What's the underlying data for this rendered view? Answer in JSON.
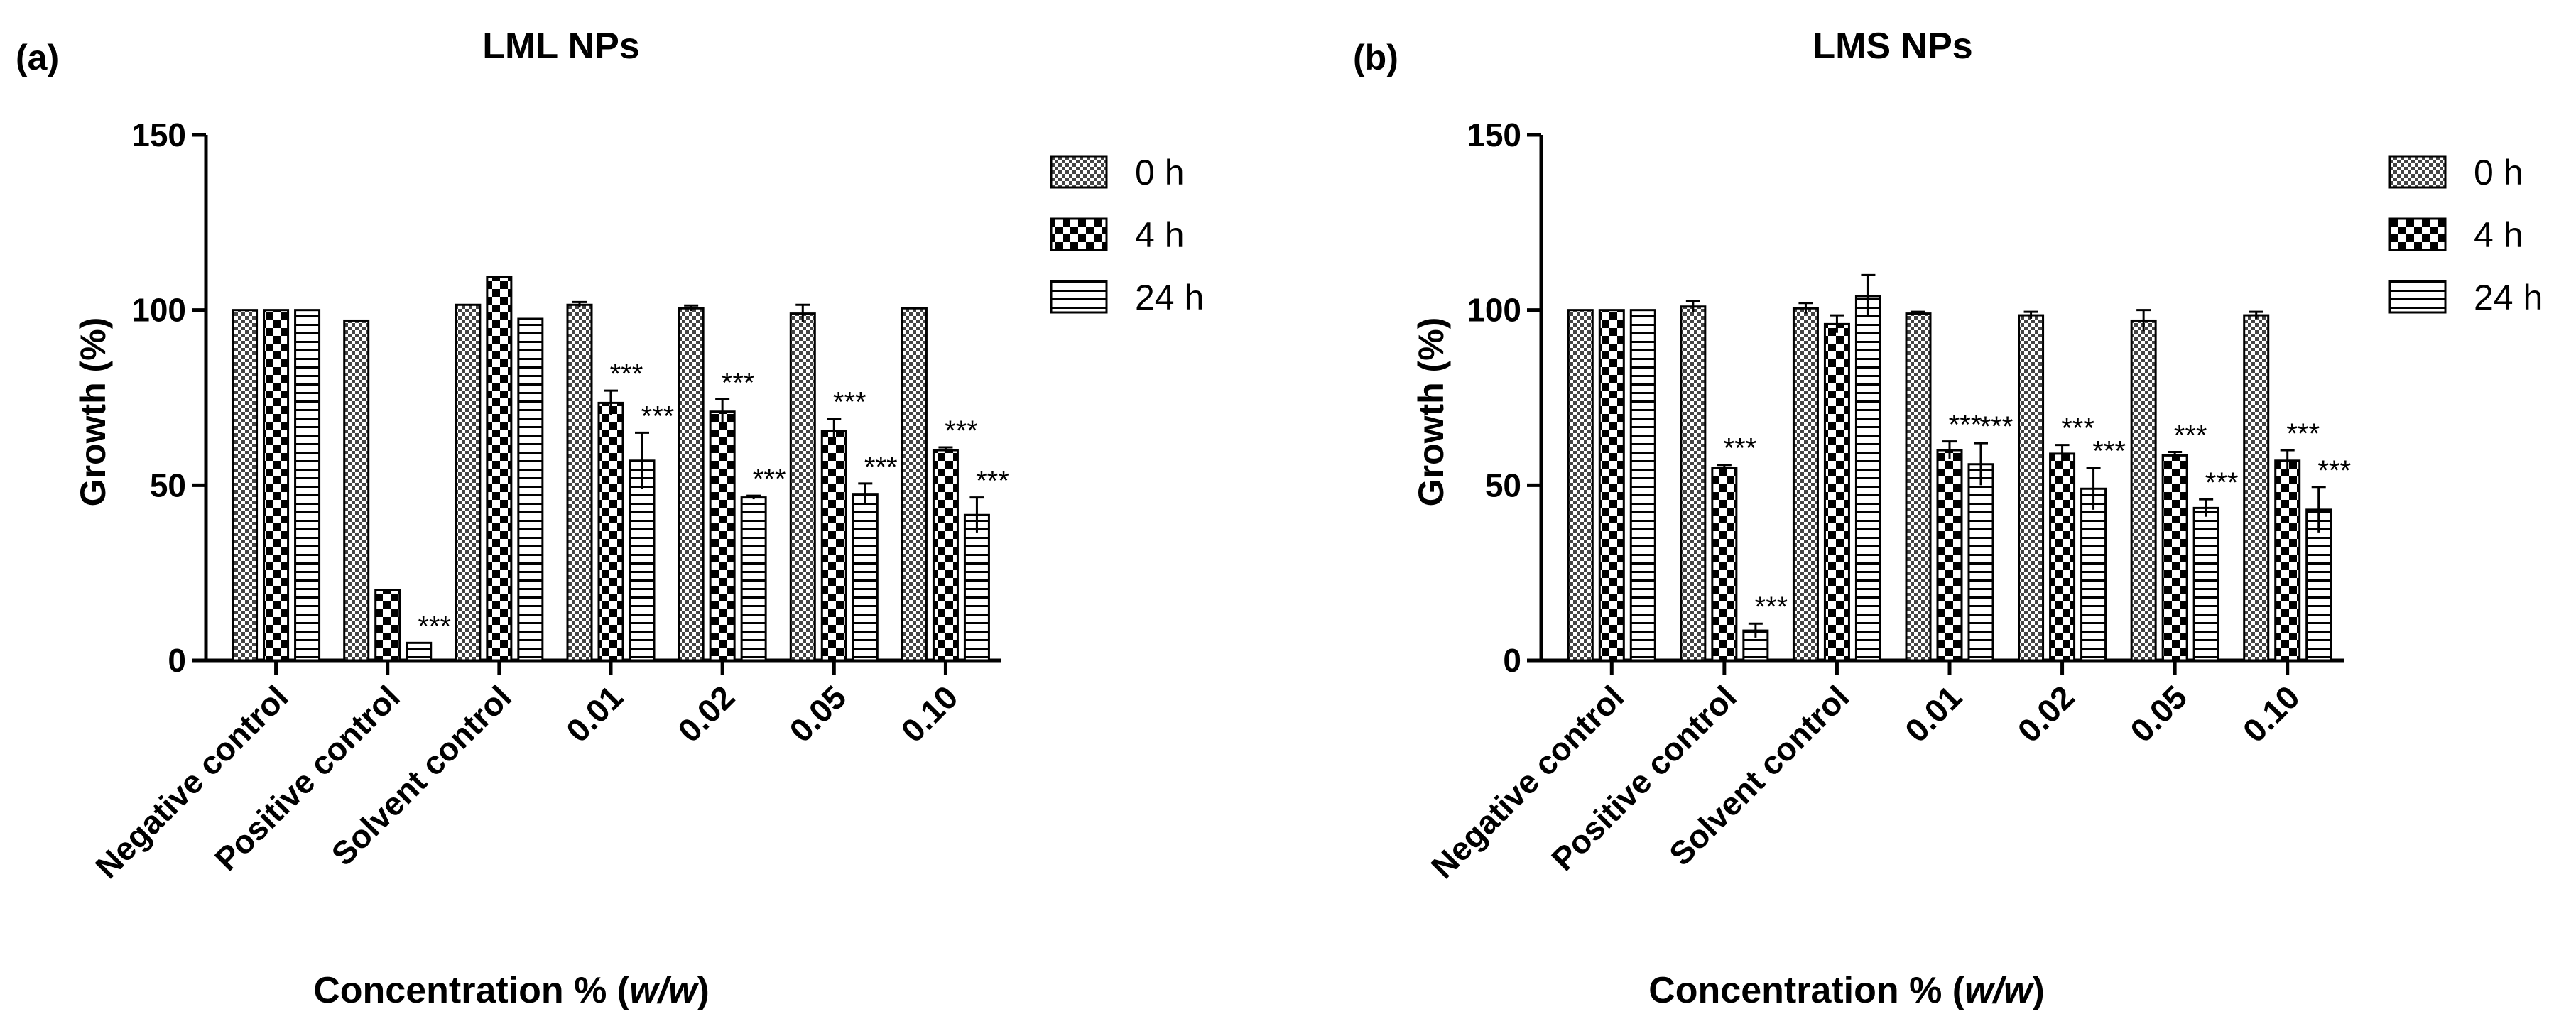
{
  "chart_data": [
    {
      "type": "bar",
      "panel_label": "(a)",
      "title": "LML NPs",
      "ylabel": "Growth (%)",
      "xlabel_prefix": "Concentration % (",
      "xlabel_italic": "w/w",
      "xlabel_suffix": ")",
      "ylim": [
        0,
        150
      ],
      "yticks": [
        "0",
        "50",
        "100",
        "150"
      ],
      "categories": [
        "Negative control",
        "Positive control",
        "Solvent control",
        "0.01",
        "0.02",
        "0.05",
        "0.10"
      ],
      "series": [
        {
          "name": "0 h",
          "values": [
            100,
            97,
            101.5,
            101.5,
            100.5,
            99,
            100.5
          ],
          "errors": [
            0,
            0,
            0,
            0.8,
            0.8,
            2.5,
            0
          ],
          "sig": [
            "",
            "",
            "",
            "",
            "",
            "",
            ""
          ]
        },
        {
          "name": "4 h",
          "values": [
            100,
            20,
            109.5,
            73.5,
            71,
            65.5,
            60
          ],
          "errors": [
            0,
            0,
            0,
            3.5,
            3.5,
            3.5,
            0.8
          ],
          "sig": [
            "",
            "",
            "",
            "***",
            "***",
            "***",
            "***"
          ]
        },
        {
          "name": "24 h",
          "values": [
            100,
            5,
            97.5,
            57,
            46.5,
            47.5,
            41.5
          ],
          "errors": [
            0,
            0,
            0,
            8,
            0.5,
            3,
            5
          ],
          "sig": [
            "",
            "***",
            "",
            "***",
            "***",
            "***",
            "***"
          ]
        }
      ],
      "legend": [
        "0 h",
        "4 h",
        "24 h"
      ],
      "legend_position": "top-right"
    },
    {
      "type": "bar",
      "panel_label": "(b)",
      "title": "LMS NPs",
      "ylabel": "Growth (%)",
      "xlabel_prefix": "Concentration % (",
      "xlabel_italic": "w/w",
      "xlabel_suffix": ")",
      "ylim": [
        0,
        150
      ],
      "yticks": [
        "0",
        "50",
        "100",
        "150"
      ],
      "categories": [
        "Negative control",
        "Positive control",
        "Solvent control",
        "0.01",
        "0.02",
        "0.05",
        "0.10"
      ],
      "series": [
        {
          "name": "0 h",
          "values": [
            100,
            101,
            100.5,
            99,
            98.5,
            97,
            98.5
          ],
          "errors": [
            0,
            1.5,
            1.5,
            0.5,
            1,
            3,
            1
          ],
          "sig": [
            "",
            "",
            "",
            "",
            "",
            "",
            ""
          ]
        },
        {
          "name": "4 h",
          "values": [
            100,
            55,
            96,
            60,
            59,
            58.5,
            57
          ],
          "errors": [
            0,
            0.8,
            2.5,
            2.5,
            2.5,
            1,
            3
          ],
          "sig": [
            "",
            "***",
            "",
            "***",
            "***",
            "***",
            "***"
          ]
        },
        {
          "name": "24 h",
          "values": [
            100,
            8.5,
            104,
            56,
            49,
            43.5,
            43
          ],
          "errors": [
            0,
            2,
            6,
            6,
            6,
            2.5,
            6.5
          ],
          "sig": [
            "",
            "***",
            "",
            "***",
            "***",
            "***",
            "***"
          ]
        }
      ],
      "legend": [
        "0 h",
        "4 h",
        "24 h"
      ],
      "legend_position": "top-right"
    }
  ]
}
